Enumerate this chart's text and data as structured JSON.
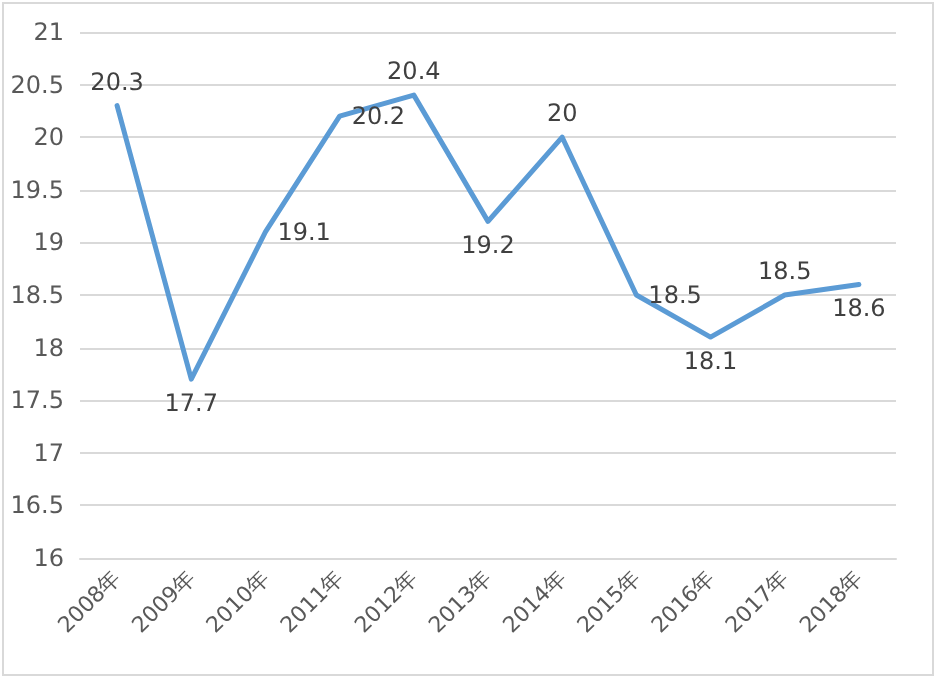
{
  "chart_data": {
    "type": "line",
    "categories": [
      "2008年",
      "2009年",
      "2010年",
      "2011年",
      "2012年",
      "2013年",
      "2014年",
      "2015年",
      "2016年",
      "2017年",
      "2018年"
    ],
    "series": [
      {
        "color": "#5b9bd5",
        "values": [
          20.3,
          17.7,
          19.1,
          20.2,
          20.4,
          19.2,
          20,
          18.5,
          18.1,
          18.5,
          18.6
        ]
      }
    ],
    "ylim": [
      16,
      21
    ],
    "yticks": [
      16,
      16.5,
      17,
      17.5,
      18,
      18.5,
      19,
      19.5,
      20,
      20.5,
      21
    ],
    "grid": "y",
    "data_labels": true,
    "marker": "none",
    "line_style": "solid"
  }
}
